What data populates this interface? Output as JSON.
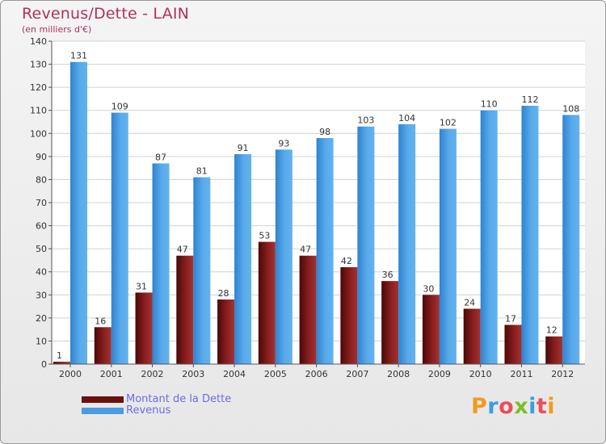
{
  "header": {
    "title": "Revenus/Dette - LAIN",
    "subtitle": "(en milliers d'€)"
  },
  "chart_data": {
    "type": "bar",
    "title": "Revenus/Dette - LAIN",
    "subtitle": "(en milliers d'€)",
    "xlabel": "",
    "ylabel": "",
    "ylim": [
      0,
      140
    ],
    "yticks": [
      0,
      10,
      20,
      30,
      40,
      50,
      60,
      70,
      80,
      90,
      100,
      110,
      120,
      130,
      140
    ],
    "grid": true,
    "legend_position": "bottom-left",
    "categories": [
      "2000",
      "2001",
      "2002",
      "2003",
      "2004",
      "2005",
      "2006",
      "2007",
      "2008",
      "2009",
      "2010",
      "2011",
      "2012"
    ],
    "series": [
      {
        "name": "Montant de la Dette",
        "color": "#7a1515",
        "values": [
          1,
          16,
          31,
          47,
          28,
          53,
          47,
          42,
          36,
          30,
          24,
          17,
          12
        ]
      },
      {
        "name": "Revenus",
        "color": "#4a9be2",
        "values": [
          131,
          109,
          87,
          81,
          91,
          93,
          98,
          103,
          104,
          102,
          110,
          112,
          108
        ]
      }
    ]
  },
  "legend": {
    "items": [
      {
        "label": "Montant de la Dette",
        "color": "#6b0f0f"
      },
      {
        "label": "Revenus",
        "color": "#4a9be2"
      }
    ]
  },
  "logo": {
    "text": "Proxiti",
    "letter_colors": [
      "#f29b1d",
      "#3b9de0",
      "#e8505b",
      "#7dbf2a",
      "#3b9de0",
      "#e8505b",
      "#f29b1d"
    ]
  }
}
